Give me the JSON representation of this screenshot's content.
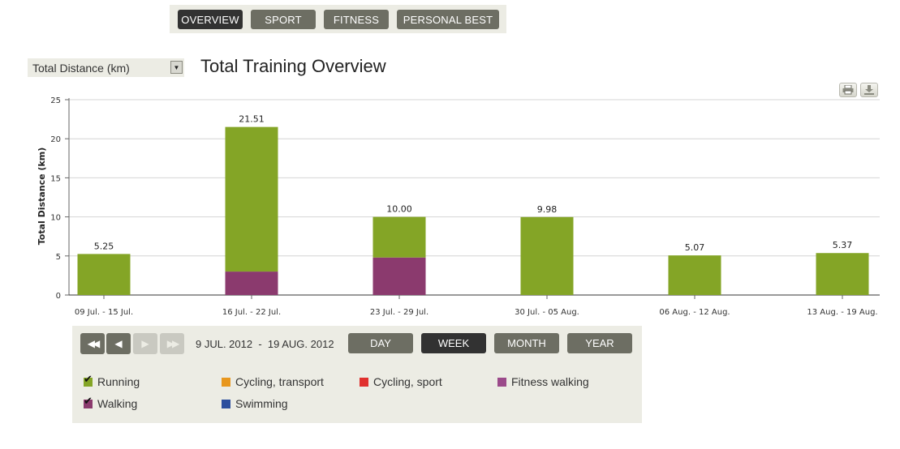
{
  "nav": {
    "tabs": [
      {
        "label": "OVERVIEW",
        "active": true
      },
      {
        "label": "SPORT",
        "active": false
      },
      {
        "label": "FITNESS",
        "active": false
      },
      {
        "label": "PERSONAL BEST",
        "active": false
      }
    ]
  },
  "metric_select": {
    "value": "Total Distance (km)"
  },
  "page_title": "Total Training Overview",
  "toolbar": {
    "print_icon": "print-icon",
    "download_icon": "download-icon"
  },
  "chart_data": {
    "type": "bar",
    "stacked": true,
    "title": "",
    "ylabel": "Total Distance (km)",
    "xlabel": "",
    "ylim": [
      0,
      25
    ],
    "yticks": [
      "0",
      "5",
      "10",
      "15",
      "20",
      "25"
    ],
    "grid": true,
    "categories": [
      "09 Jul. - 15 Jul.",
      "16 Jul. - 22 Jul.",
      "23 Jul. - 29 Jul.",
      "30 Jul. - 05 Aug.",
      "06 Aug. - 12 Aug.",
      "13 Aug. - 19 Aug."
    ],
    "totals": [
      "5.25",
      "21.51",
      "10.00",
      "9.98",
      "5.07",
      "5.37"
    ],
    "series": [
      {
        "name": "Walking",
        "color": "#8b3a6e",
        "values": [
          0,
          3.0,
          4.8,
          0,
          0,
          0
        ]
      },
      {
        "name": "Running",
        "color": "#84a526",
        "values": [
          5.25,
          18.51,
          5.2,
          9.98,
          5.07,
          5.37
        ]
      }
    ]
  },
  "pager": {
    "first_icon": "rewind-icon",
    "prev_icon": "prev-icon",
    "next_icon": "next-icon",
    "last_icon": "fast-forward-icon",
    "date_range": "9 JUL. 2012  -  19 AUG. 2012"
  },
  "periods": [
    {
      "label": "DAY",
      "active": false
    },
    {
      "label": "WEEK",
      "active": true
    },
    {
      "label": "MONTH",
      "active": false
    },
    {
      "label": "YEAR",
      "active": false
    }
  ],
  "legend": [
    {
      "label": "Running",
      "color": "#84a526",
      "checked": true
    },
    {
      "label": "Cycling, transport",
      "color": "#e8971e",
      "checked": false
    },
    {
      "label": "Cycling, sport",
      "color": "#e0302e",
      "checked": false
    },
    {
      "label": "Fitness walking",
      "color": "#9b4a8a",
      "checked": false
    },
    {
      "label": "Walking",
      "color": "#8b3a6e",
      "checked": true
    },
    {
      "label": "Swimming",
      "color": "#2c4f9e",
      "checked": false
    }
  ]
}
